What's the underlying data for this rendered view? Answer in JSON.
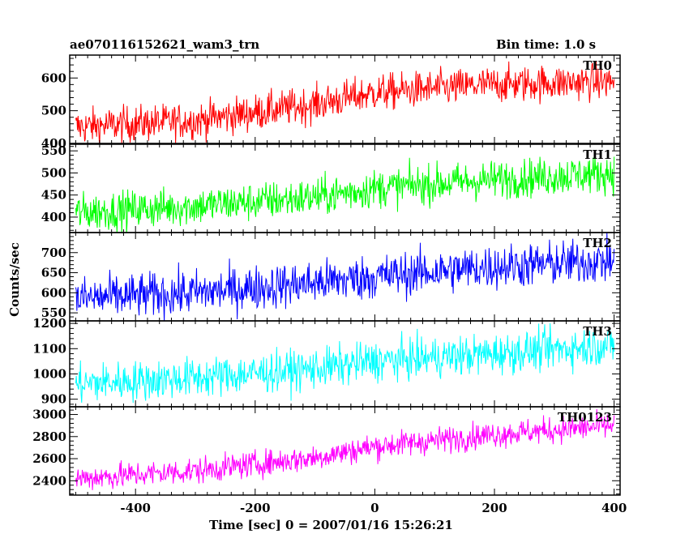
{
  "header": {
    "title": "ae070116152621_wam3_trn",
    "bin_time": "Bin time: 1.0 s"
  },
  "chart_data": {
    "type": "line",
    "xlabel": "Time [sec] 0 = 2007/01/16 15:26:21",
    "ylabel": "Counts/sec",
    "xlim": [
      -510,
      410
    ],
    "x_ticks": [
      -400,
      -200,
      0,
      200,
      400
    ],
    "x_start": -500,
    "x_end": 400,
    "x_step": 1,
    "panels": [
      {
        "name": "TH0",
        "color": "#ff0000",
        "ylim": [
          400,
          670
        ],
        "yticks": [
          400,
          500,
          600
        ],
        "trend": [
          [
            -500,
            450
          ],
          [
            -300,
            470
          ],
          [
            -100,
            520
          ],
          [
            0,
            555
          ],
          [
            200,
            580
          ],
          [
            400,
            590
          ]
        ],
        "noise": 28
      },
      {
        "name": "TH1",
        "color": "#00ff00",
        "ylim": [
          365,
          565
        ],
        "yticks": [
          400,
          450,
          500,
          550
        ],
        "trend": [
          [
            -500,
            410
          ],
          [
            -300,
            425
          ],
          [
            -100,
            445
          ],
          [
            0,
            465
          ],
          [
            200,
            485
          ],
          [
            400,
            500
          ]
        ],
        "noise": 22
      },
      {
        "name": "TH2",
        "color": "#0000ff",
        "ylim": [
          530,
          750
        ],
        "yticks": [
          550,
          600,
          650,
          700
        ],
        "trend": [
          [
            -500,
            585
          ],
          [
            -300,
            600
          ],
          [
            -100,
            625
          ],
          [
            0,
            640
          ],
          [
            200,
            665
          ],
          [
            400,
            680
          ]
        ],
        "noise": 28
      },
      {
        "name": "TH3",
        "color": "#00ffff",
        "ylim": [
          870,
          1210
        ],
        "yticks": [
          900,
          1000,
          1100,
          1200
        ],
        "trend": [
          [
            -500,
            960
          ],
          [
            -300,
            985
          ],
          [
            -100,
            1020
          ],
          [
            0,
            1050
          ],
          [
            200,
            1080
          ],
          [
            400,
            1115
          ]
        ],
        "noise": 40
      },
      {
        "name": "TH0123",
        "color": "#ff00ff",
        "ylim": [
          2270,
          3070
        ],
        "yticks": [
          2400,
          2600,
          2800,
          3000
        ],
        "trend": [
          [
            -500,
            2420
          ],
          [
            -300,
            2490
          ],
          [
            -100,
            2610
          ],
          [
            0,
            2710
          ],
          [
            200,
            2820
          ],
          [
            400,
            2900
          ]
        ],
        "noise": 60
      }
    ]
  }
}
